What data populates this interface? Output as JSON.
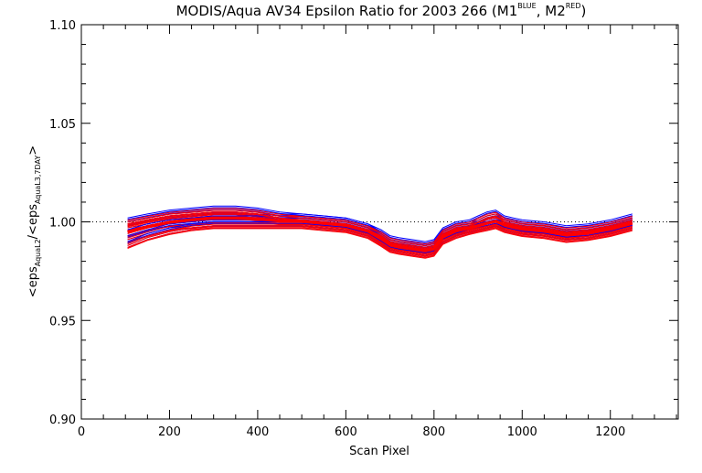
{
  "chart_data": {
    "type": "line",
    "title_main": "MODIS/Aqua AV34 Epsilon Ratio for 2003 266 (M1",
    "title_sup1": "BLUE",
    "title_mid": ", M2",
    "title_sup2": "RED",
    "title_end": ")",
    "xlabel": "Scan Pixel",
    "ylabel_parts": {
      "open": "<eps",
      "sub1": "AquaL2",
      "mid": "/<eps",
      "sub2": "AquaL3,7DAY",
      "close": ">"
    },
    "xlim": [
      0,
      1354
    ],
    "ylim": [
      0.9,
      1.1
    ],
    "xticks": [
      0,
      200,
      400,
      600,
      800,
      1000,
      1200
    ],
    "xtick_labels": [
      "0",
      "200",
      "400",
      "600",
      "800",
      "1000",
      "1200"
    ],
    "yticks": [
      0.9,
      0.95,
      1.0,
      1.05,
      1.1
    ],
    "ytick_labels": [
      "0.90",
      "0.95",
      "1.00",
      "1.05",
      "1.10"
    ],
    "reference_line": 1.0,
    "colors": {
      "M1": "#0000ff",
      "M2": "#ff0000",
      "axes": "#000000"
    },
    "x": [
      105,
      150,
      200,
      250,
      300,
      350,
      400,
      450,
      500,
      550,
      600,
      650,
      680,
      700,
      720,
      750,
      780,
      800,
      820,
      850,
      880,
      900,
      920,
      940,
      960,
      980,
      1000,
      1050,
      1100,
      1150,
      1200,
      1250
    ],
    "series": [
      {
        "values": [
          0.997,
          0.999,
          1.001,
          1.002,
          1.003,
          1.003,
          1.002,
          1.001,
          1.001,
          1.0,
          0.999,
          0.996,
          0.992,
          0.989,
          0.988,
          0.987,
          0.986,
          0.987,
          0.993,
          0.996,
          0.997,
          0.998,
          0.999,
          1.0,
          0.999,
          0.998,
          0.997,
          0.996,
          0.994,
          0.995,
          0.997,
          1.0
        ]
      },
      {
        "values": [
          0.999,
          1.001,
          1.003,
          1.004,
          1.005,
          1.005,
          1.004,
          1.002,
          1.002,
          1.001,
          1.0,
          0.997,
          0.993,
          0.99,
          0.989,
          0.988,
          0.987,
          0.988,
          0.994,
          0.997,
          0.998,
          0.999,
          1.001,
          1.002,
          1.0,
          0.999,
          0.998,
          0.997,
          0.995,
          0.996,
          0.998,
          1.001
        ]
      },
      {
        "values": [
          0.994,
          0.997,
          0.999,
          1.0,
          1.001,
          1.001,
          1.001,
          1.0,
          1.0,
          0.999,
          0.998,
          0.995,
          0.991,
          0.988,
          0.987,
          0.986,
          0.985,
          0.986,
          0.992,
          0.995,
          0.996,
          0.997,
          0.998,
          0.999,
          0.998,
          0.997,
          0.996,
          0.995,
          0.993,
          0.994,
          0.996,
          0.999
        ]
      },
      {
        "values": [
          0.991,
          0.994,
          0.997,
          0.998,
          0.999,
          0.999,
          0.999,
          0.999,
          0.999,
          0.998,
          0.997,
          0.994,
          0.99,
          0.987,
          0.986,
          0.985,
          0.984,
          0.985,
          0.991,
          0.994,
          0.996,
          0.997,
          0.998,
          0.999,
          0.997,
          0.996,
          0.995,
          0.994,
          0.992,
          0.993,
          0.995,
          0.998
        ]
      },
      {
        "values": [
          1.0,
          1.002,
          1.004,
          1.005,
          1.006,
          1.006,
          1.005,
          1.003,
          1.002,
          1.001,
          1.0,
          0.997,
          0.994,
          0.991,
          0.99,
          0.989,
          0.988,
          0.989,
          0.995,
          0.998,
          0.999,
          1.001,
          1.003,
          1.004,
          1.001,
          1.0,
          0.999,
          0.998,
          0.996,
          0.997,
          0.999,
          1.002
        ]
      },
      {
        "values": [
          0.988,
          0.992,
          0.995,
          0.997,
          0.998,
          0.998,
          0.998,
          0.998,
          0.998,
          0.997,
          0.996,
          0.993,
          0.989,
          0.986,
          0.985,
          0.984,
          0.983,
          0.984,
          0.99,
          0.993,
          0.995,
          0.996,
          0.997,
          0.998,
          0.996,
          0.995,
          0.994,
          0.993,
          0.991,
          0.992,
          0.994,
          0.997
        ]
      }
    ]
  }
}
